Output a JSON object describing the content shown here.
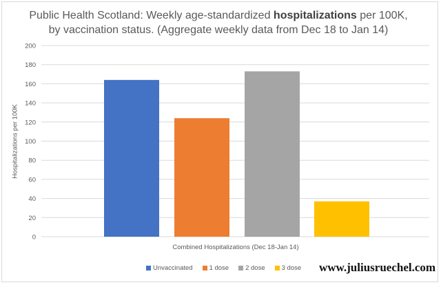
{
  "title_line1_prefix": "Public Health Scotland: Weekly age-standardized ",
  "title_line1_bold": "hospitalizations",
  "title_line1_suffix": " per 100K,",
  "title_line2": "by vaccination status. (Aggregate weekly data from Dec 18 to Jan 14)",
  "watermark": "www.juliusruechel.com",
  "chart_data": {
    "type": "bar",
    "title": "Public Health Scotland: Weekly age-standardized hospitalizations per 100K, by vaccination status. (Aggregate weekly data from Dec 18 to Jan 14)",
    "xlabel": "Combined Hospitalizations (Dec 18-Jan 14)",
    "ylabel": "Hospitalizations per 100K",
    "ylim": [
      0,
      200
    ],
    "yticks": [
      0,
      20,
      40,
      60,
      80,
      100,
      120,
      140,
      160,
      180,
      200
    ],
    "grid": true,
    "legend_position": "bottom",
    "series": [
      {
        "name": "Unvaccinated",
        "value": 164,
        "color": "#4472c4"
      },
      {
        "name": "1 dose",
        "value": 124,
        "color": "#ed7d31"
      },
      {
        "name": "2 dose",
        "value": 173,
        "color": "#a5a5a5"
      },
      {
        "name": "3 dose",
        "value": 37,
        "color": "#ffc000"
      }
    ]
  }
}
